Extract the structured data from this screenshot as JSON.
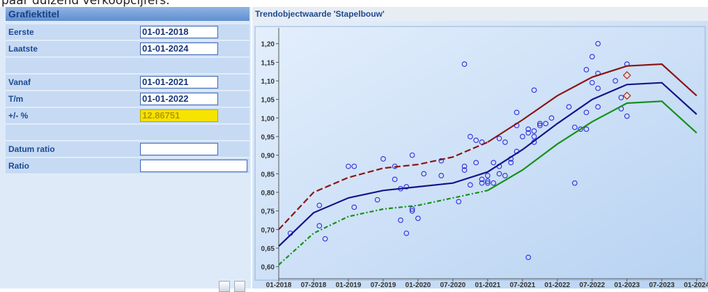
{
  "top_text": "paar duizend verkoopcijfers.",
  "form": {
    "title": "Grafiektitel",
    "fields": [
      {
        "label": "Eerste",
        "value": "01-01-2018"
      },
      {
        "label": "Laatste",
        "value": "01-01-2024"
      },
      {
        "label": "Vanaf",
        "value": "01-01-2021"
      },
      {
        "label": "T/m",
        "value": "01-01-2022"
      },
      {
        "label": "+/- %",
        "value": "12.86751"
      },
      {
        "label": "Datum ratio"
      },
      {
        "label": "Ratio"
      }
    ]
  },
  "chart_data": {
    "type": "line",
    "title": "Trendobjectwaarde 'Stapelbouw'",
    "xlim": [
      "01-2018",
      "02-2024"
    ],
    "xticks": [
      "01-2018",
      "07-2018",
      "01-2019",
      "07-2019",
      "01-2020",
      "07-2020",
      "01-2021",
      "07-2021",
      "01-2022",
      "07-2022",
      "01-2023",
      "07-2023",
      "01-2024"
    ],
    "ylim": [
      0.5675,
      1.2425
    ],
    "yticks": [
      {
        "value": 0.6,
        "label": "0,60"
      },
      {
        "value": 0.65,
        "label": "0,65"
      },
      {
        "value": 0.7,
        "label": "0,70"
      },
      {
        "value": 0.75,
        "label": "0,75"
      },
      {
        "value": 0.8,
        "label": "0,80"
      },
      {
        "value": 0.85,
        "label": "0,85"
      },
      {
        "value": 0.9,
        "label": "0,90"
      },
      {
        "value": 0.95,
        "label": "0,95"
      },
      {
        "value": 1.0,
        "label": "1,00"
      },
      {
        "value": 1.05,
        "label": "1,05"
      },
      {
        "value": 1.1,
        "label": "1,10"
      },
      {
        "value": 1.15,
        "label": "1,15"
      },
      {
        "value": 1.2,
        "label": "1,20"
      }
    ],
    "series": [
      {
        "type": "scatter",
        "color": "#2b2bdc",
        "x": [
          "03-2018",
          "08-2018",
          "08-2018",
          "09-2018",
          "01-2019",
          "02-2019",
          "02-2019",
          "06-2019",
          "07-2019",
          "09-2019",
          "09-2019",
          "10-2019",
          "10-2019",
          "11-2019",
          "11-2019",
          "12-2019",
          "12-2019",
          "12-2019",
          "01-2020",
          "02-2020",
          "05-2020",
          "05-2020",
          "08-2020",
          "09-2020",
          "09-2020",
          "09-2020",
          "10-2020",
          "10-2020",
          "11-2020",
          "12-2020",
          "11-2020",
          "12-2020",
          "12-2020",
          "01-2021",
          "01-2021",
          "01-2021",
          "02-2021",
          "02-2021",
          "03-2021",
          "03-2021",
          "03-2021",
          "04-2021",
          "04-2021",
          "05-2021",
          "05-2021",
          "06-2021",
          "06-2021",
          "06-2021",
          "07-2021",
          "08-2021",
          "08-2021",
          "08-2021",
          "09-2021",
          "09-2021",
          "09-2021",
          "10-2021",
          "09-2021",
          "10-2021",
          "11-2021",
          "12-2021",
          "03-2022",
          "04-2022",
          "04-2022",
          "05-2022",
          "06-2022",
          "06-2022",
          "06-2022",
          "07-2022",
          "07-2022",
          "08-2022",
          "08-2022",
          "08-2022",
          "08-2022",
          "11-2022",
          "12-2022",
          "12-2022",
          "01-2023",
          "01-2023"
        ],
        "values": [
          0.69,
          0.71,
          0.765,
          0.675,
          0.87,
          0.87,
          0.76,
          0.78,
          0.89,
          0.87,
          0.835,
          0.725,
          0.81,
          0.815,
          0.69,
          0.755,
          0.75,
          0.9,
          0.73,
          0.85,
          0.845,
          0.885,
          0.775,
          0.86,
          1.145,
          0.87,
          0.82,
          0.95,
          0.94,
          0.935,
          0.88,
          0.835,
          0.825,
          0.825,
          0.845,
          0.83,
          0.825,
          0.88,
          0.85,
          0.87,
          0.945,
          0.935,
          0.845,
          0.88,
          0.89,
          0.98,
          1.015,
          0.91,
          0.95,
          0.97,
          0.96,
          0.625,
          0.965,
          0.95,
          0.935,
          0.985,
          1.075,
          0.98,
          0.985,
          1.0,
          1.03,
          0.975,
          0.825,
          0.97,
          0.97,
          1.015,
          1.13,
          1.165,
          1.095,
          1.12,
          1.03,
          1.08,
          1.2,
          1.1,
          1.025,
          1.055,
          1.005,
          1.145
        ]
      },
      {
        "type": "diamond",
        "color": "#9b2a2a",
        "x": [
          "01-2023",
          "01-2023"
        ],
        "values": [
          1.115,
          1.06
        ]
      },
      {
        "type": "line",
        "color": "#8b1414",
        "line_style": "dash",
        "x": [
          "01-2018",
          "07-2018",
          "01-2019",
          "07-2019",
          "01-2020",
          "07-2020",
          "01-2021",
          "07-2021",
          "01-2022",
          "07-2022",
          "01-2023",
          "07-2023",
          "01-2024"
        ],
        "values": [
          0.7,
          0.8,
          0.84,
          0.865,
          0.875,
          0.895,
          0.935,
          0.995,
          1.06,
          1.11,
          1.14,
          1.145,
          1.06
        ]
      },
      {
        "type": "line",
        "color": "#14148b",
        "x": [
          "01-2018",
          "07-2018",
          "01-2019",
          "07-2019",
          "01-2020",
          "07-2020",
          "01-2021",
          "07-2021",
          "01-2022",
          "07-2022",
          "01-2023",
          "07-2023",
          "01-2024"
        ],
        "values": [
          0.655,
          0.745,
          0.785,
          0.805,
          0.815,
          0.825,
          0.855,
          0.915,
          0.985,
          1.05,
          1.09,
          1.095,
          1.01
        ]
      },
      {
        "type": "line",
        "color": "#15901a",
        "line_style": "dashdot",
        "x": [
          "01-2018",
          "07-2018",
          "01-2019",
          "07-2019",
          "01-2020",
          "07-2020",
          "01-2021",
          "07-2021",
          "01-2022",
          "07-2022",
          "01-2023",
          "07-2023",
          "01-2024"
        ],
        "values": [
          0.605,
          0.69,
          0.735,
          0.755,
          0.765,
          0.785,
          0.805,
          0.86,
          0.93,
          0.99,
          1.04,
          1.045,
          0.96
        ]
      }
    ]
  }
}
